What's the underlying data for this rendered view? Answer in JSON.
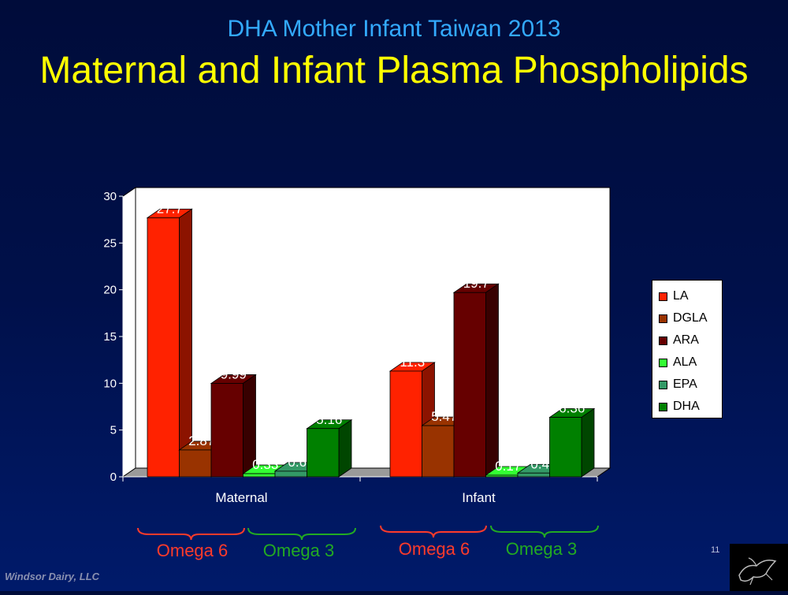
{
  "header": {
    "subtitle": "DHA Mother Infant Taiwan 2013",
    "title": "Maternal and Infant Plasma Phospholipids"
  },
  "chart_data": {
    "type": "bar",
    "categories": [
      "Maternal",
      "Infant"
    ],
    "series": [
      {
        "name": "LA",
        "color": "#ff2200",
        "values": [
          27.7,
          11.3
        ]
      },
      {
        "name": "DGLA",
        "color": "#993300",
        "values": [
          2.87,
          5.47
        ]
      },
      {
        "name": "ARA",
        "color": "#660000",
        "values": [
          9.99,
          19.7
        ]
      },
      {
        "name": "ALA",
        "color": "#33ff33",
        "values": [
          0.33,
          0.17
        ]
      },
      {
        "name": "EPA",
        "color": "#339966",
        "values": [
          0.6,
          0.4
        ]
      },
      {
        "name": "DHA",
        "color": "#008000",
        "values": [
          5.16,
          6.36
        ]
      }
    ],
    "data_labels": [
      [
        "27.7",
        "2.87",
        "9.99",
        "0.33",
        "0.6",
        "5.16"
      ],
      [
        "11.3",
        "5.47",
        "19.7",
        "0.17",
        "0.4",
        "6.36"
      ]
    ],
    "ylim": [
      0,
      30
    ],
    "yticks": [
      0,
      5,
      10,
      15,
      20,
      25,
      30
    ],
    "legend_position": "right",
    "grid": false
  },
  "groups": [
    {
      "label": "Omega 6",
      "color": "#ff3b2a"
    },
    {
      "label": "Omega 3",
      "color": "#22aa22"
    },
    {
      "label": "Omega 6",
      "color": "#ff3b2a"
    },
    {
      "label": "Omega 3",
      "color": "#22aa22"
    }
  ],
  "footer": {
    "company": "Windsor Dairy, LLC",
    "page": "11"
  }
}
